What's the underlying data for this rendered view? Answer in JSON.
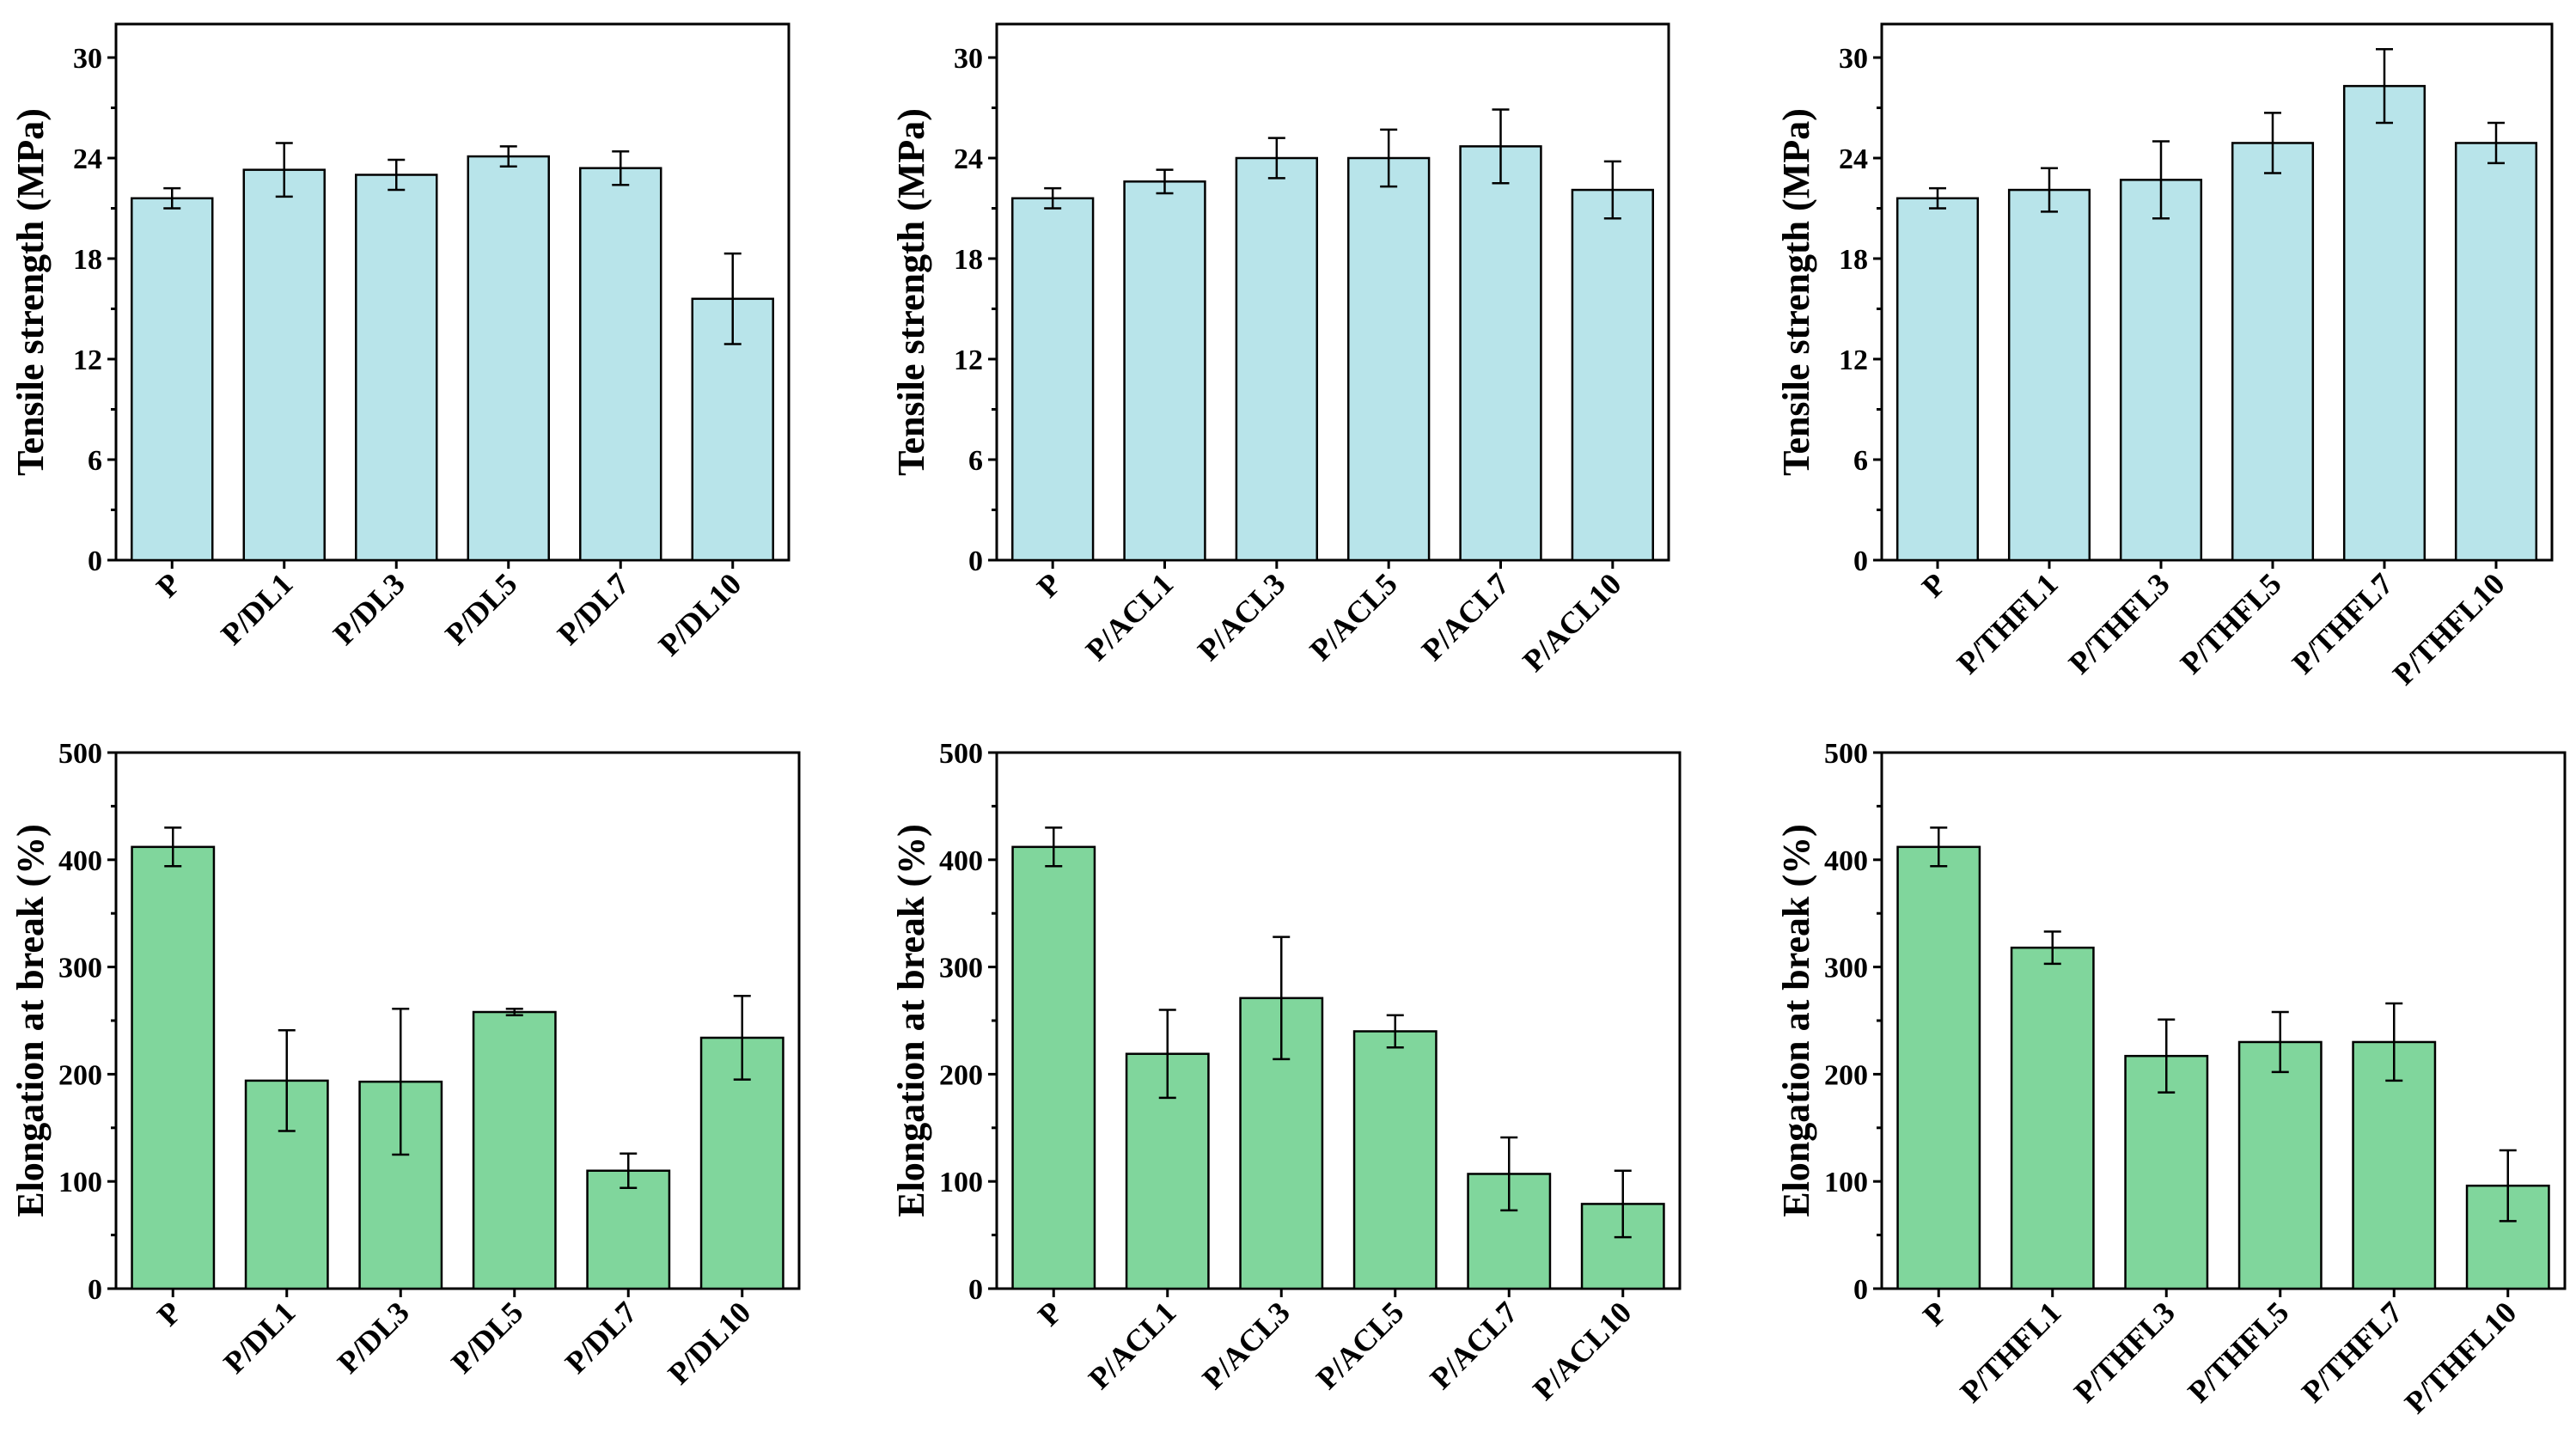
{
  "colors": {
    "tensile_bar": "#b8e4ea",
    "elongation_bar": "#80d69c",
    "axis": "#000000"
  },
  "chart_data": [
    {
      "type": "bar",
      "ylabel": "Tensile strength (MPa)",
      "xlabel": "",
      "ylim": [
        0,
        32
      ],
      "yticks": [
        0,
        6,
        12,
        18,
        24,
        30
      ],
      "categories": [
        "P",
        "P/DL1",
        "P/DL3",
        "P/DL5",
        "P/DL7",
        "P/DL10"
      ],
      "values": [
        21.6,
        23.3,
        23.0,
        24.1,
        23.4,
        15.6
      ],
      "errors": [
        0.6,
        1.6,
        0.9,
        0.6,
        1.0,
        2.7
      ]
    },
    {
      "type": "bar",
      "ylabel": "Tensile strength (MPa)",
      "xlabel": "",
      "ylim": [
        0,
        32
      ],
      "yticks": [
        0,
        6,
        12,
        18,
        24,
        30
      ],
      "categories": [
        "P",
        "P/ACL1",
        "P/ACL3",
        "P/ACL5",
        "P/ACL7",
        "P/ACL10"
      ],
      "values": [
        21.6,
        22.6,
        24.0,
        24.0,
        24.7,
        22.1
      ],
      "errors": [
        0.6,
        0.7,
        1.2,
        1.7,
        2.2,
        1.7
      ]
    },
    {
      "type": "bar",
      "ylabel": "Tensile strength (MPa)",
      "xlabel": "",
      "ylim": [
        0,
        32
      ],
      "yticks": [
        0,
        6,
        12,
        18,
        24,
        30
      ],
      "categories": [
        "P",
        "P/THFL1",
        "P/THFL3",
        "P/THFL5",
        "P/THFL7",
        "P/THFL10"
      ],
      "values": [
        21.6,
        22.1,
        22.7,
        24.9,
        28.3,
        24.9
      ],
      "errors": [
        0.6,
        1.3,
        2.3,
        1.8,
        2.2,
        1.2
      ]
    },
    {
      "type": "bar",
      "ylabel": "Elongation at break (%)",
      "xlabel": "",
      "ylim": [
        0,
        500
      ],
      "yticks": [
        0,
        100,
        200,
        300,
        400,
        500
      ],
      "categories": [
        "P",
        "P/DL1",
        "P/DL3",
        "P/DL5",
        "P/DL7",
        "P/DL10"
      ],
      "values": [
        412,
        194,
        193,
        258,
        110,
        234
      ],
      "errors": [
        18,
        47,
        68,
        3,
        16,
        39
      ]
    },
    {
      "type": "bar",
      "ylabel": "Elongation at break (%)",
      "xlabel": "",
      "ylim": [
        0,
        500
      ],
      "yticks": [
        0,
        100,
        200,
        300,
        400,
        500
      ],
      "categories": [
        "P",
        "P/ACL1",
        "P/ACL3",
        "P/ACL5",
        "P/ACL7",
        "P/ACL10"
      ],
      "values": [
        412,
        219,
        271,
        240,
        107,
        79
      ],
      "errors": [
        18,
        41,
        57,
        15,
        34,
        31
      ]
    },
    {
      "type": "bar",
      "ylabel": "Elongation at break (%)",
      "xlabel": "",
      "ylim": [
        0,
        500
      ],
      "yticks": [
        0,
        100,
        200,
        300,
        400,
        500
      ],
      "categories": [
        "P",
        "P/THFL1",
        "P/THFL3",
        "P/THFL5",
        "P/THFL7",
        "P/THFL10"
      ],
      "values": [
        412,
        318,
        217,
        230,
        230,
        96
      ],
      "errors": [
        18,
        15,
        34,
        28,
        36,
        33
      ]
    }
  ]
}
